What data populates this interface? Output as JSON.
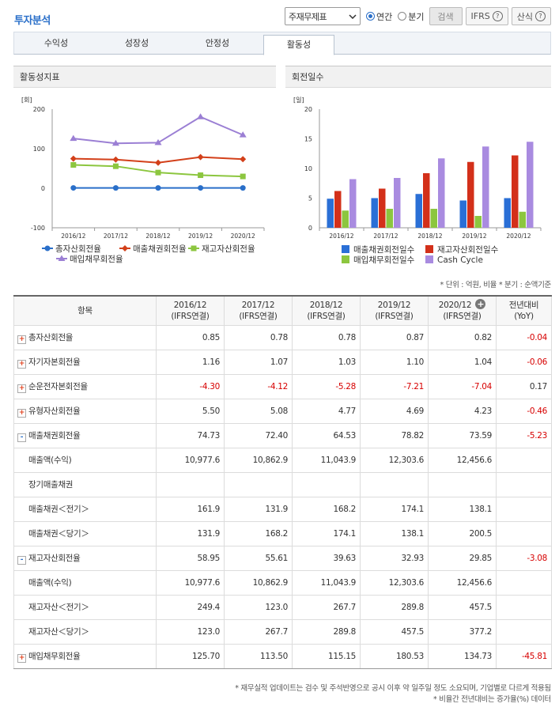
{
  "header": {
    "title": "투자분석",
    "select_value": "주재무제표",
    "radio_annual": "연간",
    "radio_quarter": "분기",
    "search_label": "검색",
    "ifrs_label": "IFRS",
    "formula_label": "산식",
    "help_glyph": "?"
  },
  "tabs": [
    {
      "label": "수익성"
    },
    {
      "label": "성장성"
    },
    {
      "label": "안정성"
    },
    {
      "label": "활동성"
    }
  ],
  "left_panel": {
    "title": "활동성지표"
  },
  "right_panel": {
    "title": "회전일수"
  },
  "chart_data": [
    {
      "type": "line",
      "unit_label": "[회]",
      "categories": [
        "2016/12",
        "2017/12",
        "2018/12",
        "2019/12",
        "2020/12"
      ],
      "ylim": [
        -100,
        200
      ],
      "yticks": [
        "-100",
        "0",
        "100",
        "200"
      ],
      "grid": false,
      "legend_position": "bottom",
      "series": [
        {
          "name": "총자산회전율",
          "color": "#2a6fc9",
          "marker": "circle",
          "values": [
            0.85,
            0.78,
            0.78,
            0.87,
            0.82
          ]
        },
        {
          "name": "매출채권회전율",
          "color": "#d3401a",
          "marker": "diamond",
          "values": [
            74.73,
            72.4,
            64.53,
            78.82,
            73.59
          ]
        },
        {
          "name": "재고자산회전율",
          "color": "#8cc63f",
          "marker": "square",
          "values": [
            58.95,
            55.61,
            39.63,
            32.93,
            29.85
          ]
        },
        {
          "name": "매입채무회전율",
          "color": "#9b7fd4",
          "marker": "triangle",
          "values": [
            125.7,
            113.5,
            115.15,
            180.53,
            134.73
          ]
        }
      ]
    },
    {
      "type": "bar",
      "unit_label": "[일]",
      "categories": [
        "2016/12",
        "2017/12",
        "2018/12",
        "2019/12",
        "2020/12"
      ],
      "ylim": [
        0,
        20
      ],
      "yticks": [
        "0",
        "5",
        "10",
        "15",
        "20"
      ],
      "grid": false,
      "legend_position": "bottom",
      "series": [
        {
          "name": "매출채권회전일수",
          "color": "#2a6fd6",
          "values": [
            4.9,
            5.0,
            5.7,
            4.6,
            5.0
          ]
        },
        {
          "name": "재고자산회전일수",
          "color": "#d3301a",
          "values": [
            6.2,
            6.6,
            9.2,
            11.1,
            12.2
          ]
        },
        {
          "name": "매입채무회전일수",
          "color": "#8cc63f",
          "values": [
            2.9,
            3.2,
            3.2,
            2.0,
            2.7
          ]
        },
        {
          "name": "Cash Cycle",
          "color": "#a98be0",
          "values": [
            8.2,
            8.4,
            11.7,
            13.7,
            14.5
          ]
        }
      ]
    }
  ],
  "notes_top": "* 단위 : 억원, 비율   * 분기 : 순액기준",
  "table": {
    "header_item": "항목",
    "columns": [
      {
        "year": "2016/12",
        "basis": "(IFRS연결)"
      },
      {
        "year": "2017/12",
        "basis": "(IFRS연결)"
      },
      {
        "year": "2018/12",
        "basis": "(IFRS연결)"
      },
      {
        "year": "2019/12",
        "basis": "(IFRS연결)"
      },
      {
        "year": "2020/12",
        "basis": "(IFRS연결)"
      }
    ],
    "yoy_line1": "전년대비",
    "yoy_line2": "(YoY)",
    "rows": [
      {
        "label": "총자산회전율",
        "toggle": "+",
        "values": [
          "0.85",
          "0.78",
          "0.78",
          "0.87",
          "0.82"
        ],
        "yoy": "-0.04"
      },
      {
        "label": "자기자본회전율",
        "toggle": "+",
        "values": [
          "1.16",
          "1.07",
          "1.03",
          "1.10",
          "1.04"
        ],
        "yoy": "-0.06"
      },
      {
        "label": "순운전자본회전율",
        "toggle": "+",
        "values": [
          "-4.30",
          "-4.12",
          "-5.28",
          "-7.21",
          "-7.04"
        ],
        "yoy": "0.17"
      },
      {
        "label": "유형자산회전율",
        "toggle": "+",
        "values": [
          "5.50",
          "5.08",
          "4.77",
          "4.69",
          "4.23"
        ],
        "yoy": "-0.46"
      },
      {
        "label": "매출채권회전율",
        "toggle": "-",
        "values": [
          "74.73",
          "72.40",
          "64.53",
          "78.82",
          "73.59"
        ],
        "yoy": "-5.23"
      },
      {
        "label": "매출액(수익)",
        "toggle": "",
        "values": [
          "10,977.6",
          "10,862.9",
          "11,043.9",
          "12,303.6",
          "12,456.6"
        ],
        "yoy": ""
      },
      {
        "label": "장기매출채권",
        "toggle": "",
        "values": [
          "",
          "",
          "",
          "",
          ""
        ],
        "yoy": ""
      },
      {
        "label": "매출채권＜전기＞",
        "toggle": "",
        "values": [
          "161.9",
          "131.9",
          "168.2",
          "174.1",
          "138.1"
        ],
        "yoy": ""
      },
      {
        "label": "매출채권＜당기＞",
        "toggle": "",
        "values": [
          "131.9",
          "168.2",
          "174.1",
          "138.1",
          "200.5"
        ],
        "yoy": ""
      },
      {
        "label": "재고자산회전율",
        "toggle": "-",
        "values": [
          "58.95",
          "55.61",
          "39.63",
          "32.93",
          "29.85"
        ],
        "yoy": "-3.08"
      },
      {
        "label": "매출액(수익)",
        "toggle": "",
        "values": [
          "10,977.6",
          "10,862.9",
          "11,043.9",
          "12,303.6",
          "12,456.6"
        ],
        "yoy": ""
      },
      {
        "label": "재고자산＜전기＞",
        "toggle": "",
        "values": [
          "249.4",
          "123.0",
          "267.7",
          "289.8",
          "457.5"
        ],
        "yoy": ""
      },
      {
        "label": "재고자산＜당기＞",
        "toggle": "",
        "values": [
          "123.0",
          "267.7",
          "289.8",
          "457.5",
          "377.2"
        ],
        "yoy": ""
      },
      {
        "label": "매입채무회전율",
        "toggle": "+",
        "values": [
          "125.70",
          "113.50",
          "115.15",
          "180.53",
          "134.73"
        ],
        "yoy": "-45.81"
      }
    ]
  },
  "footnotes": [
    "* 재무실적 업데이트는 검수 및 주석반영으로 공시 이후 약 일주일 정도 소요되며, 기업별로 다르게 적용됨",
    "* 비율간 전년대비는 증가율(%) 데이터"
  ]
}
